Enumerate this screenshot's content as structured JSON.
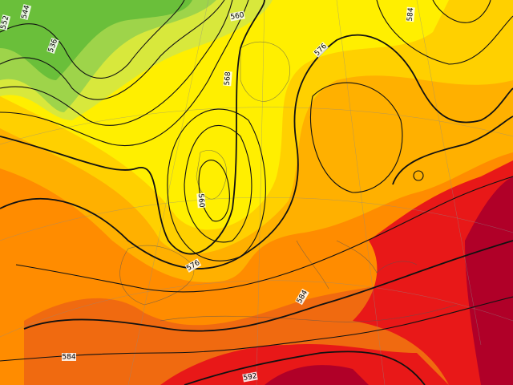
{
  "contour_labels": [
    "552",
    "544",
    "536",
    "560",
    "568",
    "576",
    "584",
    "560",
    "576",
    "584",
    "584",
    "592"
  ]
}
